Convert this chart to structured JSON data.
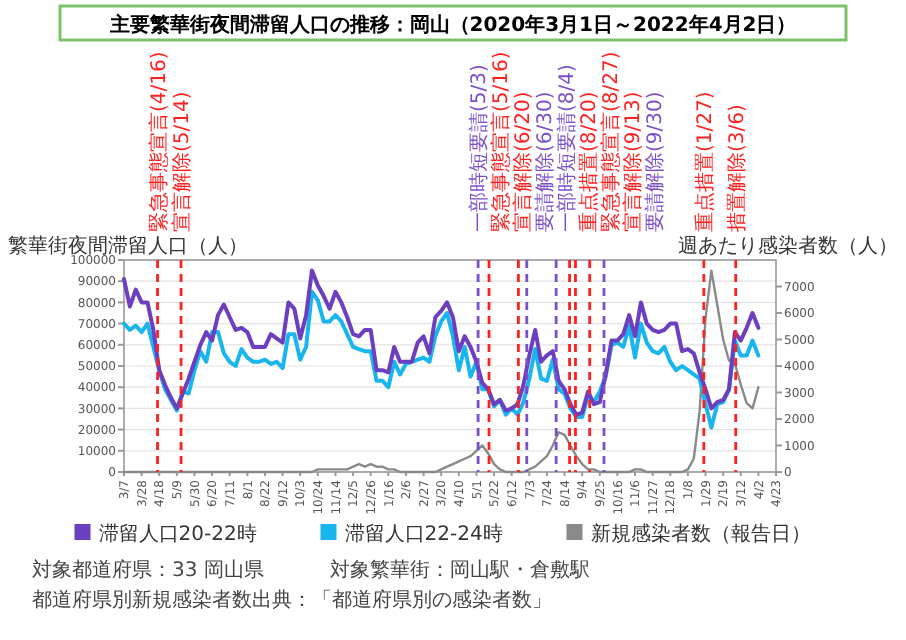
{
  "chart_data": {
    "type": "line",
    "title": "主要繁華街夜間滞留人口の推移：岡山（2020年3月1日～2022年4月2日）",
    "ylabel": "繁華街夜間滞留人口（人）",
    "y2label": "週あたり感染者数（人）",
    "x": [
      "2020-03-07",
      "2020-03-14",
      "2020-03-21",
      "2020-03-28",
      "2020-04-04",
      "2020-04-11",
      "2020-04-18",
      "2020-04-25",
      "2020-05-02",
      "2020-05-09",
      "2020-05-16",
      "2020-05-23",
      "2020-05-30",
      "2020-06-06",
      "2020-06-13",
      "2020-06-20",
      "2020-06-27",
      "2020-07-04",
      "2020-07-11",
      "2020-07-18",
      "2020-07-25",
      "2020-08-01",
      "2020-08-08",
      "2020-08-15",
      "2020-08-22",
      "2020-08-29",
      "2020-09-05",
      "2020-09-12",
      "2020-09-19",
      "2020-09-26",
      "2020-10-03",
      "2020-10-10",
      "2020-10-17",
      "2020-10-24",
      "2020-10-31",
      "2020-11-07",
      "2020-11-14",
      "2020-11-21",
      "2020-11-28",
      "2020-12-05",
      "2020-12-12",
      "2020-12-19",
      "2020-12-26",
      "2021-01-02",
      "2021-01-09",
      "2021-01-16",
      "2021-01-23",
      "2021-01-30",
      "2021-02-06",
      "2021-02-13",
      "2021-02-20",
      "2021-02-27",
      "2021-03-06",
      "2021-03-13",
      "2021-03-20",
      "2021-03-27",
      "2021-04-03",
      "2021-04-10",
      "2021-04-17",
      "2021-04-24",
      "2021-05-01",
      "2021-05-08",
      "2021-05-15",
      "2021-05-22",
      "2021-05-29",
      "2021-06-05",
      "2021-06-12",
      "2021-06-19",
      "2021-06-26",
      "2021-07-03",
      "2021-07-10",
      "2021-07-17",
      "2021-07-24",
      "2021-07-31",
      "2021-08-07",
      "2021-08-14",
      "2021-08-21",
      "2021-08-28",
      "2021-09-04",
      "2021-09-11",
      "2021-09-18",
      "2021-09-25",
      "2021-10-02",
      "2021-10-09",
      "2021-10-16",
      "2021-10-23",
      "2021-10-30",
      "2021-11-06",
      "2021-11-13",
      "2021-11-20",
      "2021-11-27",
      "2021-12-04",
      "2021-12-11",
      "2021-12-18",
      "2021-12-25",
      "2022-01-01",
      "2022-01-08",
      "2022-01-15",
      "2022-01-22",
      "2022-01-29",
      "2022-02-05",
      "2022-02-12",
      "2022-02-19",
      "2022-02-26",
      "2022-03-05",
      "2022-03-12",
      "2022-03-19",
      "2022-03-26",
      "2022-04-02"
    ],
    "series": [
      {
        "name": "滞留人口20-22時",
        "color": "#6b3fbf",
        "values": [
          91000,
          78000,
          86000,
          80000,
          80000,
          67000,
          48000,
          41000,
          35000,
          30000,
          37000,
          44000,
          52000,
          60000,
          66000,
          62000,
          74000,
          79000,
          73000,
          67000,
          68000,
          66000,
          59000,
          59000,
          59000,
          65000,
          63000,
          61000,
          80000,
          77000,
          63000,
          74000,
          95000,
          88000,
          83000,
          77000,
          85000,
          80000,
          73000,
          65000,
          64000,
          67000,
          67000,
          48000,
          48000,
          47000,
          59000,
          52000,
          52000,
          52000,
          61000,
          64000,
          56000,
          73000,
          76000,
          80000,
          73000,
          57000,
          64000,
          59000,
          52000,
          42000,
          39000,
          32000,
          34000,
          29000,
          30000,
          32000,
          41000,
          55000,
          67000,
          52000,
          55000,
          57000,
          43000,
          39000,
          32000,
          27000,
          28000,
          38000,
          32000,
          33000,
          46000,
          62000,
          62000,
          65000,
          74000,
          64000,
          80000,
          70000,
          67000,
          66000,
          67000,
          70000,
          70000,
          57000,
          58000,
          56000,
          47000,
          39000,
          30000,
          33000,
          34000,
          39000,
          66000,
          62000,
          68000,
          75000,
          68000
        ]
      },
      {
        "name": "滞留人口22-24時",
        "color": "#19b5ee",
        "values": [
          70000,
          67000,
          69000,
          66000,
          70000,
          59000,
          48000,
          39000,
          34000,
          29000,
          38000,
          37000,
          48000,
          57000,
          52000,
          66000,
          66000,
          56000,
          52000,
          50000,
          58000,
          54000,
          52000,
          52000,
          53000,
          51000,
          52000,
          49000,
          65000,
          65000,
          53000,
          59000,
          85000,
          81000,
          71000,
          71000,
          74000,
          71000,
          65000,
          59000,
          58000,
          57000,
          57000,
          43000,
          43000,
          40000,
          52000,
          46000,
          51000,
          52000,
          53000,
          54000,
          52000,
          64000,
          71000,
          75000,
          64000,
          48000,
          59000,
          45000,
          52000,
          39000,
          39000,
          31000,
          34000,
          27000,
          30000,
          27000,
          33000,
          44000,
          58000,
          44000,
          43000,
          53000,
          39000,
          37000,
          30000,
          26000,
          26000,
          36000,
          33000,
          38000,
          45000,
          60000,
          61000,
          59000,
          69000,
          54000,
          70000,
          61000,
          57000,
          56000,
          59000,
          52000,
          48000,
          50000,
          48000,
          46000,
          44000,
          32000,
          21000,
          32000,
          33000,
          39000,
          62000,
          55000,
          55000,
          62000,
          55000
        ]
      },
      {
        "name": "新規感染者数（報告日）",
        "color": "#8a8a8a",
        "axis": "y2",
        "values": [
          0,
          0,
          0,
          0,
          0,
          0,
          0,
          0,
          0,
          0,
          0,
          0,
          0,
          0,
          0,
          0,
          0,
          0,
          0,
          0,
          0,
          0,
          0,
          0,
          0,
          0,
          0,
          0,
          0,
          0,
          0,
          0,
          0,
          100,
          100,
          100,
          100,
          100,
          100,
          200,
          300,
          200,
          300,
          200,
          200,
          100,
          100,
          0,
          0,
          0,
          0,
          0,
          0,
          0,
          100,
          200,
          300,
          400,
          500,
          600,
          800,
          1000,
          700,
          300,
          100,
          0,
          0,
          0,
          0,
          100,
          200,
          400,
          600,
          1000,
          1500,
          1400,
          1000,
          600,
          300,
          100,
          100,
          0,
          0,
          0,
          0,
          0,
          0,
          100,
          100,
          0,
          0,
          0,
          0,
          0,
          0,
          0,
          100,
          500,
          2300,
          5800,
          7600,
          6300,
          5000,
          4200,
          4100,
          3300,
          2600,
          2400,
          3200
        ]
      }
    ],
    "xlim": [
      "2020-03-07",
      "2022-04-23"
    ],
    "xticks": [
      {
        "value": "2020-03-07",
        "label": "3/7"
      },
      {
        "value": "2020-03-28",
        "label": "3/28"
      },
      {
        "value": "2020-04-18",
        "label": "4/18"
      },
      {
        "value": "2020-05-09",
        "label": "5/9"
      },
      {
        "value": "2020-05-30",
        "label": "5/30"
      },
      {
        "value": "2020-06-20",
        "label": "6/20"
      },
      {
        "value": "2020-07-11",
        "label": "7/11"
      },
      {
        "value": "2020-08-01",
        "label": "8/1"
      },
      {
        "value": "2020-08-22",
        "label": "8/22"
      },
      {
        "value": "2020-09-12",
        "label": "9/12"
      },
      {
        "value": "2020-10-03",
        "label": "10/3"
      },
      {
        "value": "2020-10-24",
        "label": "10/24"
      },
      {
        "value": "2020-11-14",
        "label": "11/14"
      },
      {
        "value": "2020-12-05",
        "label": "12/5"
      },
      {
        "value": "2020-12-26",
        "label": "12/26"
      },
      {
        "value": "2021-01-16",
        "label": "1/16"
      },
      {
        "value": "2021-02-06",
        "label": "2/6"
      },
      {
        "value": "2021-02-27",
        "label": "2/27"
      },
      {
        "value": "2021-03-20",
        "label": "3/20"
      },
      {
        "value": "2021-04-10",
        "label": "4/10"
      },
      {
        "value": "2021-05-01",
        "label": "5/1"
      },
      {
        "value": "2021-05-22",
        "label": "5/22"
      },
      {
        "value": "2021-06-12",
        "label": "6/12"
      },
      {
        "value": "2021-07-03",
        "label": "7/3"
      },
      {
        "value": "2021-07-24",
        "label": "7/24"
      },
      {
        "value": "2021-08-14",
        "label": "8/14"
      },
      {
        "value": "2021-09-04",
        "label": "9/4"
      },
      {
        "value": "2021-09-25",
        "label": "9/25"
      },
      {
        "value": "2021-10-16",
        "label": "10/16"
      },
      {
        "value": "2021-11-06",
        "label": "11/6"
      },
      {
        "value": "2021-11-27",
        "label": "11/27"
      },
      {
        "value": "2021-12-18",
        "label": "12/18"
      },
      {
        "value": "2022-01-08",
        "label": "1/8"
      },
      {
        "value": "2022-01-29",
        "label": "1/29"
      },
      {
        "value": "2022-02-19",
        "label": "2/19"
      },
      {
        "value": "2022-03-12",
        "label": "3/12"
      },
      {
        "value": "2022-04-02",
        "label": "4/2"
      },
      {
        "value": "2022-04-23",
        "label": "4/23"
      }
    ],
    "ylim": [
      0,
      100000
    ],
    "yticks": [
      0,
      10000,
      20000,
      30000,
      40000,
      50000,
      60000,
      70000,
      80000,
      90000,
      100000
    ],
    "y2lim": [
      0,
      8000
    ],
    "y2ticks": [
      0,
      1000,
      2000,
      3000,
      4000,
      5000,
      6000,
      7000
    ],
    "grid": "y",
    "legend": "bottom",
    "ref_lines": [
      {
        "axis": "x",
        "value": "2020-04-16",
        "label": "緊急事態宣言(4/16)",
        "color": "#ff2020",
        "line_style": "dashed"
      },
      {
        "axis": "x",
        "value": "2020-05-14",
        "label": "宣言解除(5/14)",
        "color": "#ff2020",
        "line_style": "dashed"
      },
      {
        "axis": "x",
        "value": "2021-05-03",
        "label": "一部時短要請(5/3)",
        "color": "#7b4fc9",
        "line_style": "dashed"
      },
      {
        "axis": "x",
        "value": "2021-05-16",
        "label": "緊急事態宣言(5/16)",
        "color": "#ff2020",
        "line_style": "dashed"
      },
      {
        "axis": "x",
        "value": "2021-06-20",
        "label": "宣言解除(6/20)",
        "color": "#ff2020",
        "line_style": "dashed"
      },
      {
        "axis": "x",
        "value": "2021-06-30",
        "label": "要請解除(6/30)",
        "color": "#7b4fc9",
        "line_style": "dashed"
      },
      {
        "axis": "x",
        "value": "2021-08-04",
        "label": "一部時短要請(8/4)",
        "color": "#7b4fc9",
        "line_style": "dashed"
      },
      {
        "axis": "x",
        "value": "2021-08-20",
        "label": "重点措置(8/20)",
        "color": "#ff2020",
        "line_style": "dashed"
      },
      {
        "axis": "x",
        "value": "2021-08-27",
        "label": "緊急事態宣言(8/27)",
        "color": "#ff2020",
        "line_style": "dashed"
      },
      {
        "axis": "x",
        "value": "2021-09-13",
        "label": "宣言解除(9/13)",
        "color": "#ff2020",
        "line_style": "dashed"
      },
      {
        "axis": "x",
        "value": "2021-09-30",
        "label": "要請解除(9/30)",
        "color": "#7b4fc9",
        "line_style": "dashed"
      },
      {
        "axis": "x",
        "value": "2022-01-27",
        "label": "重点措置(1/27)",
        "color": "#ff2020",
        "line_style": "dashed"
      },
      {
        "axis": "x",
        "value": "2022-03-06",
        "label": "措置解除(3/6)",
        "color": "#ff2020",
        "line_style": "dashed"
      }
    ],
    "annotations": [
      "対象都道府県：33 岡山県",
      "対象繁華街：岡山駅・倉敷駅",
      "都道府県別新規感染者数出典：「都道府県別の感染者数」"
    ]
  }
}
